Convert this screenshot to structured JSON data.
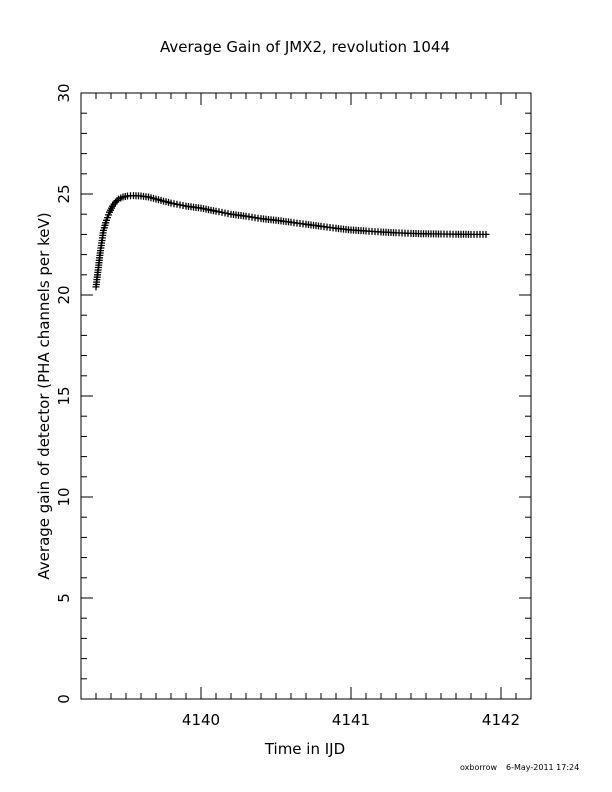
{
  "chart_data": {
    "type": "scatter",
    "title": "Average Gain of JMX2, revolution 1044",
    "xlabel": "Time in IJD",
    "ylabel": "Average gain of detector (PHA channels per keV)",
    "xlim": [
      4139.2,
      4142.2
    ],
    "ylim": [
      0,
      30
    ],
    "x_major_ticks": [
      4140,
      4141,
      4142
    ],
    "x_tick_labels": [
      "4140",
      "4141",
      "4142"
    ],
    "x_minor_step": 0.1,
    "y_major_ticks": [
      0,
      5,
      10,
      15,
      20,
      25,
      30
    ],
    "y_tick_labels": [
      "0",
      "5",
      "10",
      "15",
      "20",
      "25",
      "30"
    ],
    "y_minor_step": 1,
    "grid": false,
    "legend": "none",
    "marker": "plus",
    "color": "#000000",
    "series": [
      {
        "x": [
          4139.3,
          4139.31,
          4139.32,
          4139.33,
          4139.34,
          4139.35,
          4139.37,
          4139.39,
          4139.41,
          4139.43,
          4139.45,
          4139.48,
          4139.51,
          4139.55,
          4139.6,
          4139.65,
          4139.7,
          4139.8,
          4139.9,
          4140.0,
          4140.1,
          4140.2,
          4140.3,
          4140.4,
          4140.5,
          4140.6,
          4140.7,
          4140.8,
          4140.9,
          4141.0,
          4141.1,
          4141.2,
          4141.3,
          4141.4,
          4141.5,
          4141.6,
          4141.7,
          4141.8,
          4141.9
        ],
        "y": [
          20.4,
          21.0,
          21.6,
          22.2,
          22.7,
          23.2,
          23.7,
          24.1,
          24.4,
          24.6,
          24.75,
          24.85,
          24.9,
          24.92,
          24.9,
          24.85,
          24.75,
          24.55,
          24.4,
          24.3,
          24.15,
          24.0,
          23.9,
          23.78,
          23.7,
          23.6,
          23.5,
          23.4,
          23.3,
          23.22,
          23.17,
          23.12,
          23.08,
          23.05,
          23.03,
          23.02,
          23.01,
          23.0,
          23.0
        ]
      }
    ]
  },
  "footer": {
    "user": "oxborrow",
    "date": "6-May-2011 17:24"
  }
}
